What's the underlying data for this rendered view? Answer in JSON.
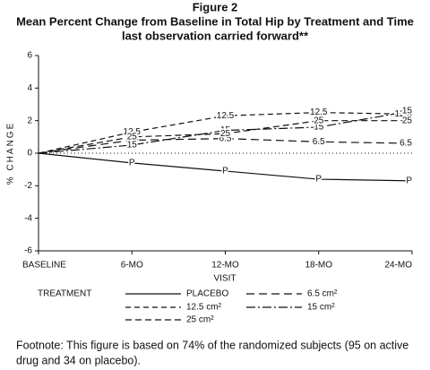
{
  "chart_data": {
    "type": "line",
    "title": "Figure 2",
    "subtitle": "Mean Percent Change from Baseline in Total Hip by Treatment and Time",
    "subtitle2": "last observation carried forward**",
    "y_label": "% CHANGE",
    "x_label": "VISIT",
    "legend_title": "TREATMENT",
    "categories": [
      "BASELINE",
      "6-MO",
      "12-MO",
      "18-MO",
      "24-MO"
    ],
    "ylim": [
      -6,
      6
    ],
    "yticks": [
      6,
      4,
      2,
      0,
      -2,
      -4,
      -6
    ],
    "zero_line": true,
    "series": [
      {
        "name": "PLACEBO",
        "marker": "P",
        "color": "#111111",
        "dash": "none",
        "values": [
          0,
          -0.6,
          -1.1,
          -1.6,
          -1.7
        ]
      },
      {
        "name": "6.5 cm²",
        "marker": "6.5",
        "color": "#111111",
        "dash": "9,5",
        "values": [
          0,
          0.8,
          0.9,
          0.7,
          0.6
        ]
      },
      {
        "name": "12.5 cm²",
        "marker": "12.5",
        "color": "#111111",
        "dash": "6,4",
        "values": [
          0,
          1.3,
          2.3,
          2.5,
          2.4
        ]
      },
      {
        "name": "15 cm²",
        "marker": "15",
        "color": "#111111",
        "dash": "10,3,2,3",
        "values": [
          0,
          0.5,
          1.4,
          1.6,
          2.6
        ]
      },
      {
        "name": "25 cm²",
        "marker": "25",
        "color": "#111111",
        "dash": "7,4",
        "values": [
          0,
          1.0,
          1.2,
          2.0,
          2.0
        ]
      }
    ],
    "footnote": [
      "Footnote: This figure is based on 74% of the randomized subjects (95 on active",
      "drug and 34 on placebo)."
    ]
  }
}
